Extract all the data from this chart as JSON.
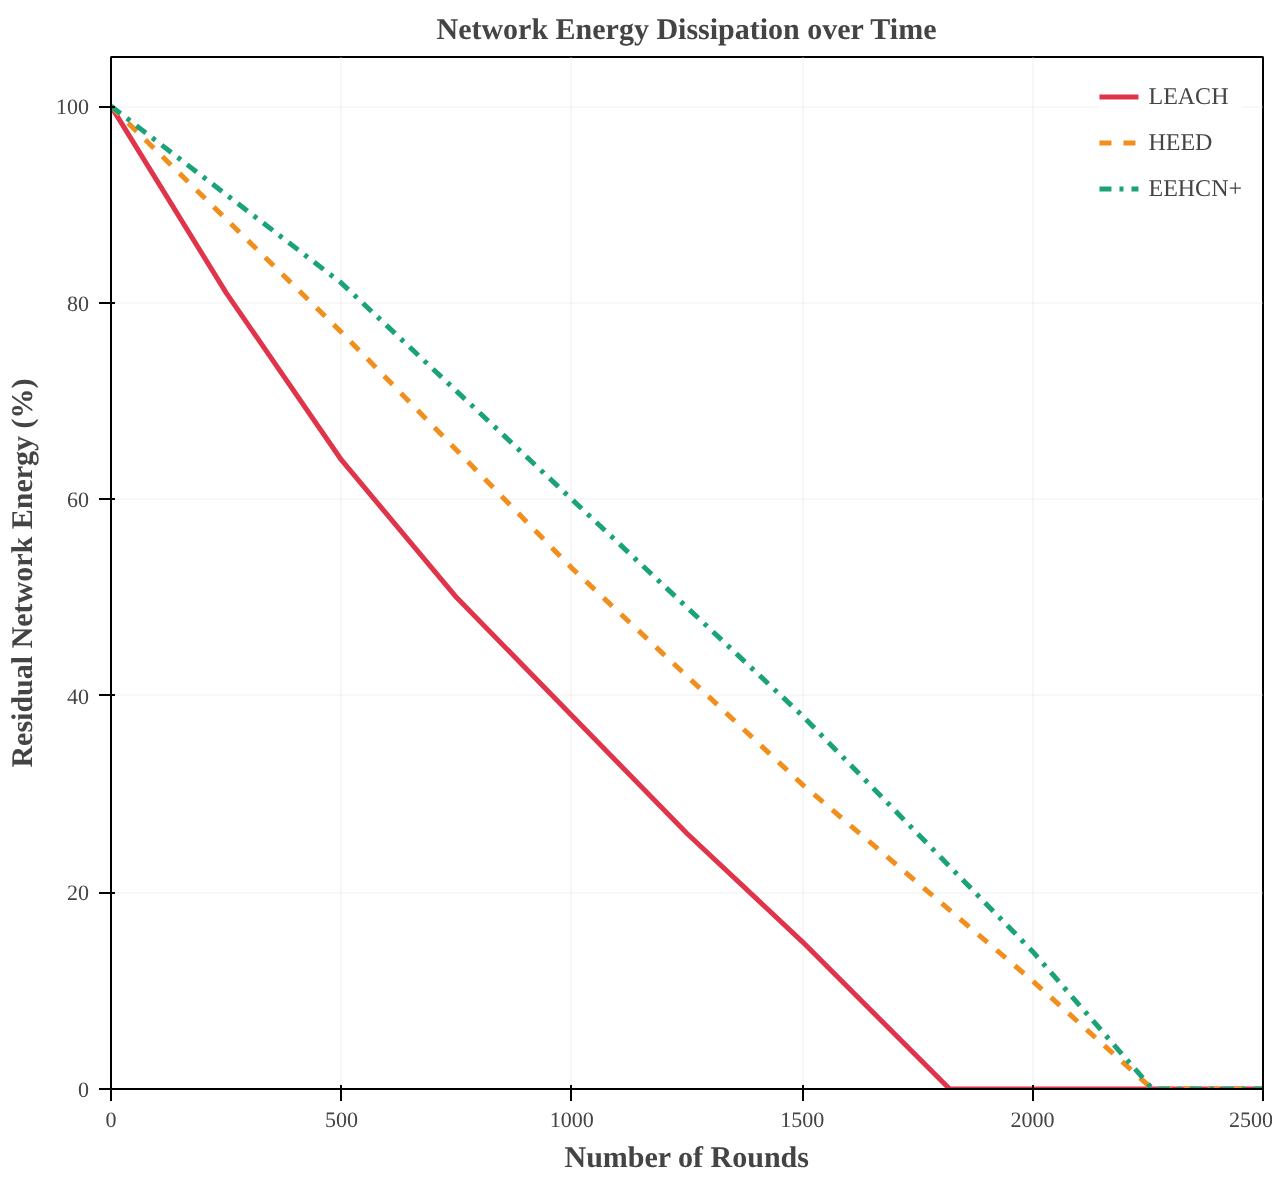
{
  "chart_data": {
    "type": "line",
    "title": "Network Energy Dissipation over Time",
    "xlabel": "Number of Rounds",
    "ylabel": "Residual Network Energy (%)",
    "xlim": [
      0,
      2500
    ],
    "ylim": [
      0,
      105
    ],
    "xticks": [
      0,
      500,
      1000,
      1500,
      2000,
      2500
    ],
    "yticks": [
      0,
      20,
      40,
      60,
      80,
      100
    ],
    "grid": true,
    "legend": "top right",
    "series": [
      {
        "name": "LEACH",
        "color": "#e0344a",
        "line_style": "solid",
        "x": [
          0,
          250,
          500,
          750,
          1000,
          1250,
          1500,
          1820,
          2500
        ],
        "values": [
          100,
          81,
          64,
          50,
          38,
          26,
          15,
          0,
          0
        ]
      },
      {
        "name": "HEED",
        "color": "#f28e1c",
        "line_style": "dashed",
        "x": [
          0,
          500,
          1000,
          1500,
          2000,
          2260,
          2500
        ],
        "values": [
          100,
          77,
          53,
          31,
          11,
          0,
          0
        ]
      },
      {
        "name": "EEHCN+",
        "color": "#1aa37a",
        "line_style": "dashdot",
        "x": [
          0,
          500,
          1000,
          1500,
          2000,
          2260,
          2500
        ],
        "values": [
          100,
          82,
          60,
          38,
          14,
          0,
          0
        ]
      }
    ]
  }
}
